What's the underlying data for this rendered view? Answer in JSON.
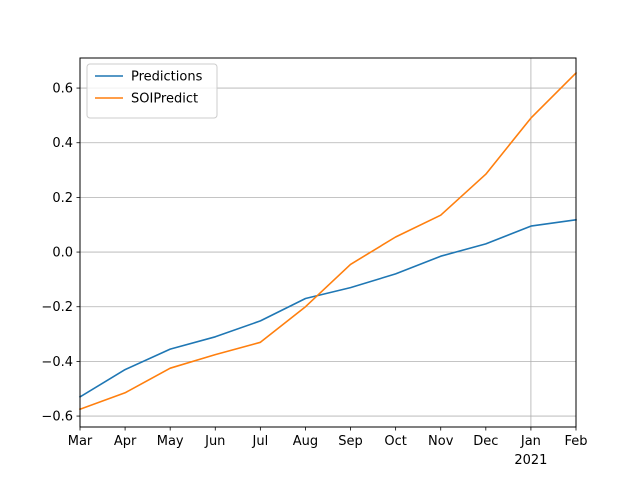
{
  "chart_data": {
    "type": "line",
    "title": "",
    "xlabel": "",
    "ylabel": "",
    "categories": [
      "Mar",
      "Apr",
      "May",
      "Jun",
      "Jul",
      "Aug",
      "Sep",
      "Oct",
      "Nov",
      "Dec",
      "Jan",
      "Feb"
    ],
    "year_label": "2021",
    "ylim": [
      -0.64,
      0.71
    ],
    "yticks": [
      -0.6,
      -0.4,
      -0.2,
      0.0,
      0.2,
      0.4,
      0.6
    ],
    "ytick_labels": [
      "−0.6",
      "−0.4",
      "−0.2",
      "0.0",
      "0.2",
      "0.4",
      "0.6"
    ],
    "grid": "horizontal, plus one vertical line at Jan",
    "legend_position": "top-left",
    "series": [
      {
        "name": "Predictions",
        "color": "#1f77b4",
        "values": [
          -0.53,
          -0.43,
          -0.355,
          -0.31,
          -0.252,
          -0.17,
          -0.13,
          -0.08,
          -0.015,
          0.03,
          0.095,
          0.118
        ]
      },
      {
        "name": "SOIPredict",
        "color": "#ff7f0e",
        "values": [
          -0.575,
          -0.515,
          -0.425,
          -0.375,
          -0.33,
          -0.2,
          -0.045,
          0.055,
          0.135,
          0.285,
          0.49,
          0.655
        ]
      }
    ]
  }
}
